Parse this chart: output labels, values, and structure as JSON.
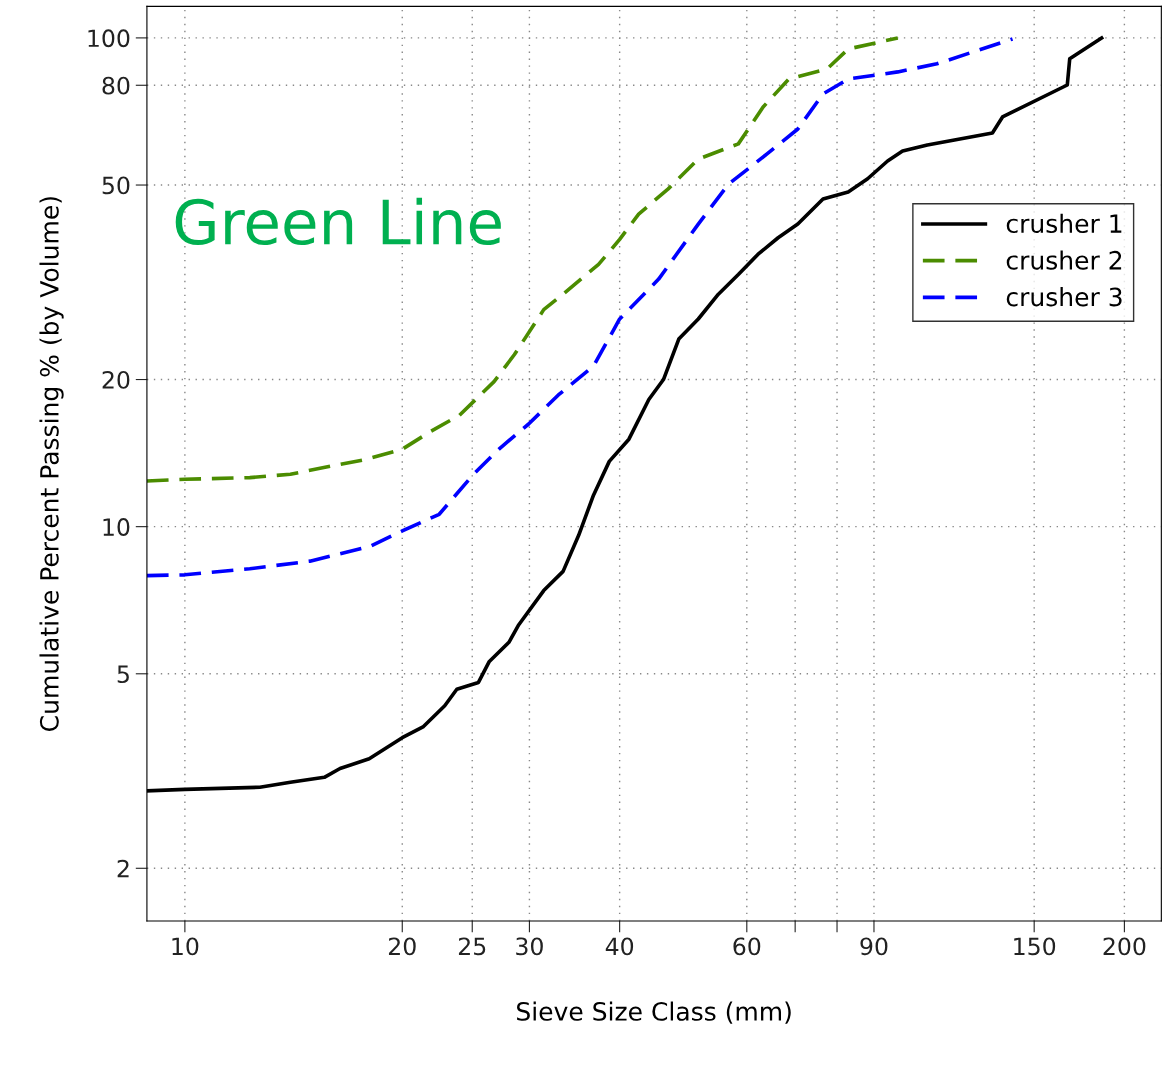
{
  "chart_data": {
    "type": "line",
    "xlabel": "Sieve Size Class (mm)",
    "ylabel": "Cumulative Percent Passing % (by Volume)",
    "log": "xy",
    "grid": true,
    "legend": "right",
    "xlim": [
      8.86,
      225
    ],
    "ylim": [
      1.56,
      116
    ],
    "xticks": [
      10,
      20,
      25,
      30,
      40,
      60,
      {
        "value": 70,
        "label": null
      },
      {
        "value": 80,
        "label": null
      },
      90,
      150,
      200
    ],
    "yticks": [
      2,
      5,
      10,
      20,
      50,
      80,
      100
    ],
    "annotations": [
      "Green Line"
    ],
    "series": [
      {
        "name": "crusher 1",
        "color": "#000000",
        "line_style": "solid",
        "x": [
          8.86,
          10,
          12.7,
          14.0,
          15.6,
          16.4,
          18.0,
          20,
          21.4,
          22.9,
          23.8,
          25.5,
          26.4,
          28.1,
          29.0,
          31.4,
          33.4,
          35.1,
          36.8,
          38.7,
          41.2,
          43.9,
          46.0,
          48.3,
          51.4,
          54.8,
          58.4,
          62.2,
          66.3,
          70.6,
          76.5,
          82.9,
          88.2,
          94.0,
          98.6,
          106.7,
          131.3,
          135.6,
          166.7,
          168,
          186
        ],
        "values": [
          2.88,
          2.9,
          2.93,
          3.0,
          3.07,
          3.2,
          3.35,
          3.7,
          3.9,
          4.3,
          4.65,
          4.8,
          5.3,
          5.8,
          6.3,
          7.4,
          8.1,
          9.6,
          11.6,
          13.6,
          15.1,
          18.2,
          20.0,
          24.2,
          26.6,
          29.9,
          32.8,
          36.1,
          39.0,
          41.6,
          46.8,
          48.4,
          51.5,
          56.0,
          58.7,
          60.4,
          63.9,
          68.9,
          80.1,
          90.6,
          100
        ]
      },
      {
        "name": "crusher 2",
        "color": "#4b8c00",
        "line_style": "dashed",
        "x": [
          8.86,
          10,
          12.3,
          14.0,
          15.9,
          17.7,
          20,
          21.8,
          24,
          26.8,
          28.6,
          31.4,
          33.4,
          37.4,
          40.0,
          42.5,
          46.7,
          51.4,
          58.4,
          63.2,
          68.6,
          77.5,
          82.9,
          97.1
        ],
        "values": [
          12.4,
          12.5,
          12.6,
          12.8,
          13.3,
          13.7,
          14.4,
          15.6,
          16.9,
          19.8,
          22.5,
          27.8,
          29.9,
          34.4,
          38.7,
          43.6,
          49.1,
          56.5,
          60.7,
          72.2,
          82.4,
          86.4,
          94.9,
          100
        ]
      },
      {
        "name": "crusher 3",
        "color": "#0000ff",
        "line_style": "dashed",
        "x": [
          8.86,
          10,
          12.3,
          14.9,
          18.0,
          20,
          22.5,
          25.1,
          27.2,
          29.9,
          32.9,
          36.8,
          40.0,
          45.3,
          51.4,
          56.6,
          64.0,
          70.6,
          76.5,
          82.9,
          97.1,
          110,
          140
        ],
        "values": [
          7.94,
          7.97,
          8.2,
          8.5,
          9.1,
          9.8,
          10.6,
          12.8,
          14.4,
          16.2,
          18.6,
          21.3,
          26.6,
          32.1,
          41.6,
          50.2,
          57.9,
          65.1,
          76.8,
          82.4,
          85.2,
          88.5,
          99.5
        ]
      }
    ]
  }
}
